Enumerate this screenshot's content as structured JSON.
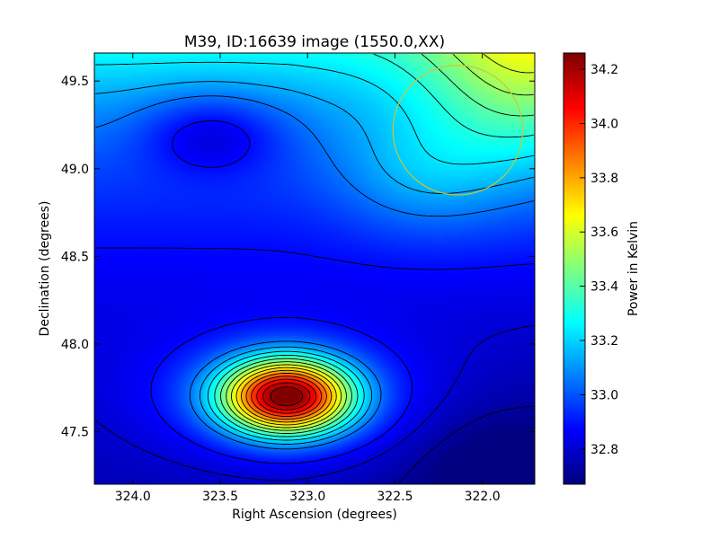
{
  "chart_data": {
    "type": "heatmap",
    "title": "M39, ID:16639 image (1550.0,XX)",
    "xlabel": "Right Ascension (degrees)",
    "ylabel": "Declination (degrees)",
    "xlim": [
      324.22,
      321.7
    ],
    "ylim": [
      47.2,
      49.66
    ],
    "x_inverted": true,
    "xticks": [
      324.0,
      323.5,
      323.0,
      322.5,
      322.0
    ],
    "xtick_labels": [
      "324.0",
      "323.5",
      "323.0",
      "322.5",
      "322.0"
    ],
    "yticks": [
      47.5,
      48.0,
      48.5,
      49.0,
      49.5
    ],
    "ytick_labels": [
      "47.5",
      "48.0",
      "48.5",
      "49.0",
      "49.5"
    ],
    "colorbar": {
      "label": "Power in Kelvin",
      "range": [
        32.67,
        34.26
      ],
      "ticks": [
        32.8,
        33.0,
        33.2,
        33.4,
        33.6,
        33.8,
        34.0,
        34.2
      ],
      "tick_labels": [
        "32.8",
        "33.0",
        "33.2",
        "33.4",
        "33.6",
        "33.8",
        "34.0",
        "34.2"
      ],
      "colormap": "jet"
    },
    "features": [
      {
        "kind": "peak",
        "ra": 323.12,
        "dec": 47.7,
        "value": 34.24
      },
      {
        "kind": "high-region",
        "ra": 321.75,
        "dec": 49.6,
        "value": 33.35
      },
      {
        "kind": "low-region",
        "ra": 321.95,
        "dec": 47.25,
        "value": 32.7
      }
    ],
    "circle": {
      "ra": 322.14,
      "dec": 49.22,
      "radius_deg": 0.37,
      "color": "#c8c832"
    },
    "contour_color": "#000000",
    "grid": false
  }
}
